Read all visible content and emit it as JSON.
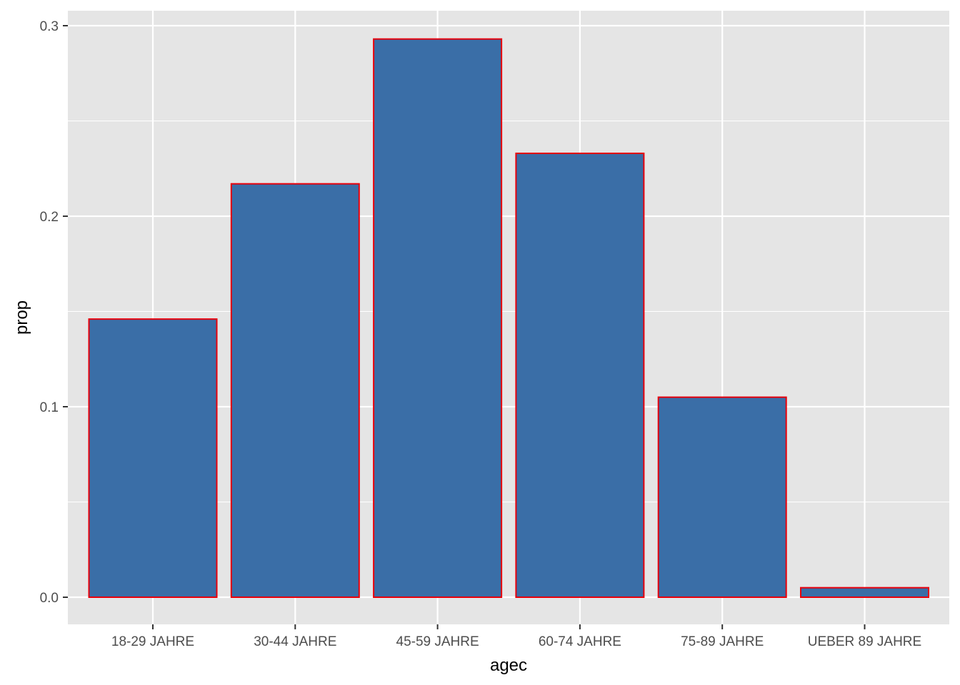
{
  "chart_data": {
    "type": "bar",
    "categories": [
      "18-29 JAHRE",
      "30-44 JAHRE",
      "45-59 JAHRE",
      "60-74 JAHRE",
      "75-89 JAHRE",
      "UEBER 89 JAHRE"
    ],
    "values": [
      0.146,
      0.217,
      0.293,
      0.233,
      0.105,
      0.005
    ],
    "title": "",
    "xlabel": "agec",
    "ylabel": "prop",
    "ylim": [
      0,
      0.3
    ],
    "yticks": [
      0.0,
      0.1,
      0.2,
      0.3
    ],
    "ytick_labels": [
      "0.0",
      "0.1",
      "0.2",
      "0.3"
    ],
    "grid": true,
    "legend": "none",
    "colors": {
      "bar_fill": "#3a6ea7",
      "bar_stroke": "#e8000b",
      "panel_background": "#e5e5e5",
      "grid": "#ffffff",
      "tick_mark": "#333333"
    }
  }
}
